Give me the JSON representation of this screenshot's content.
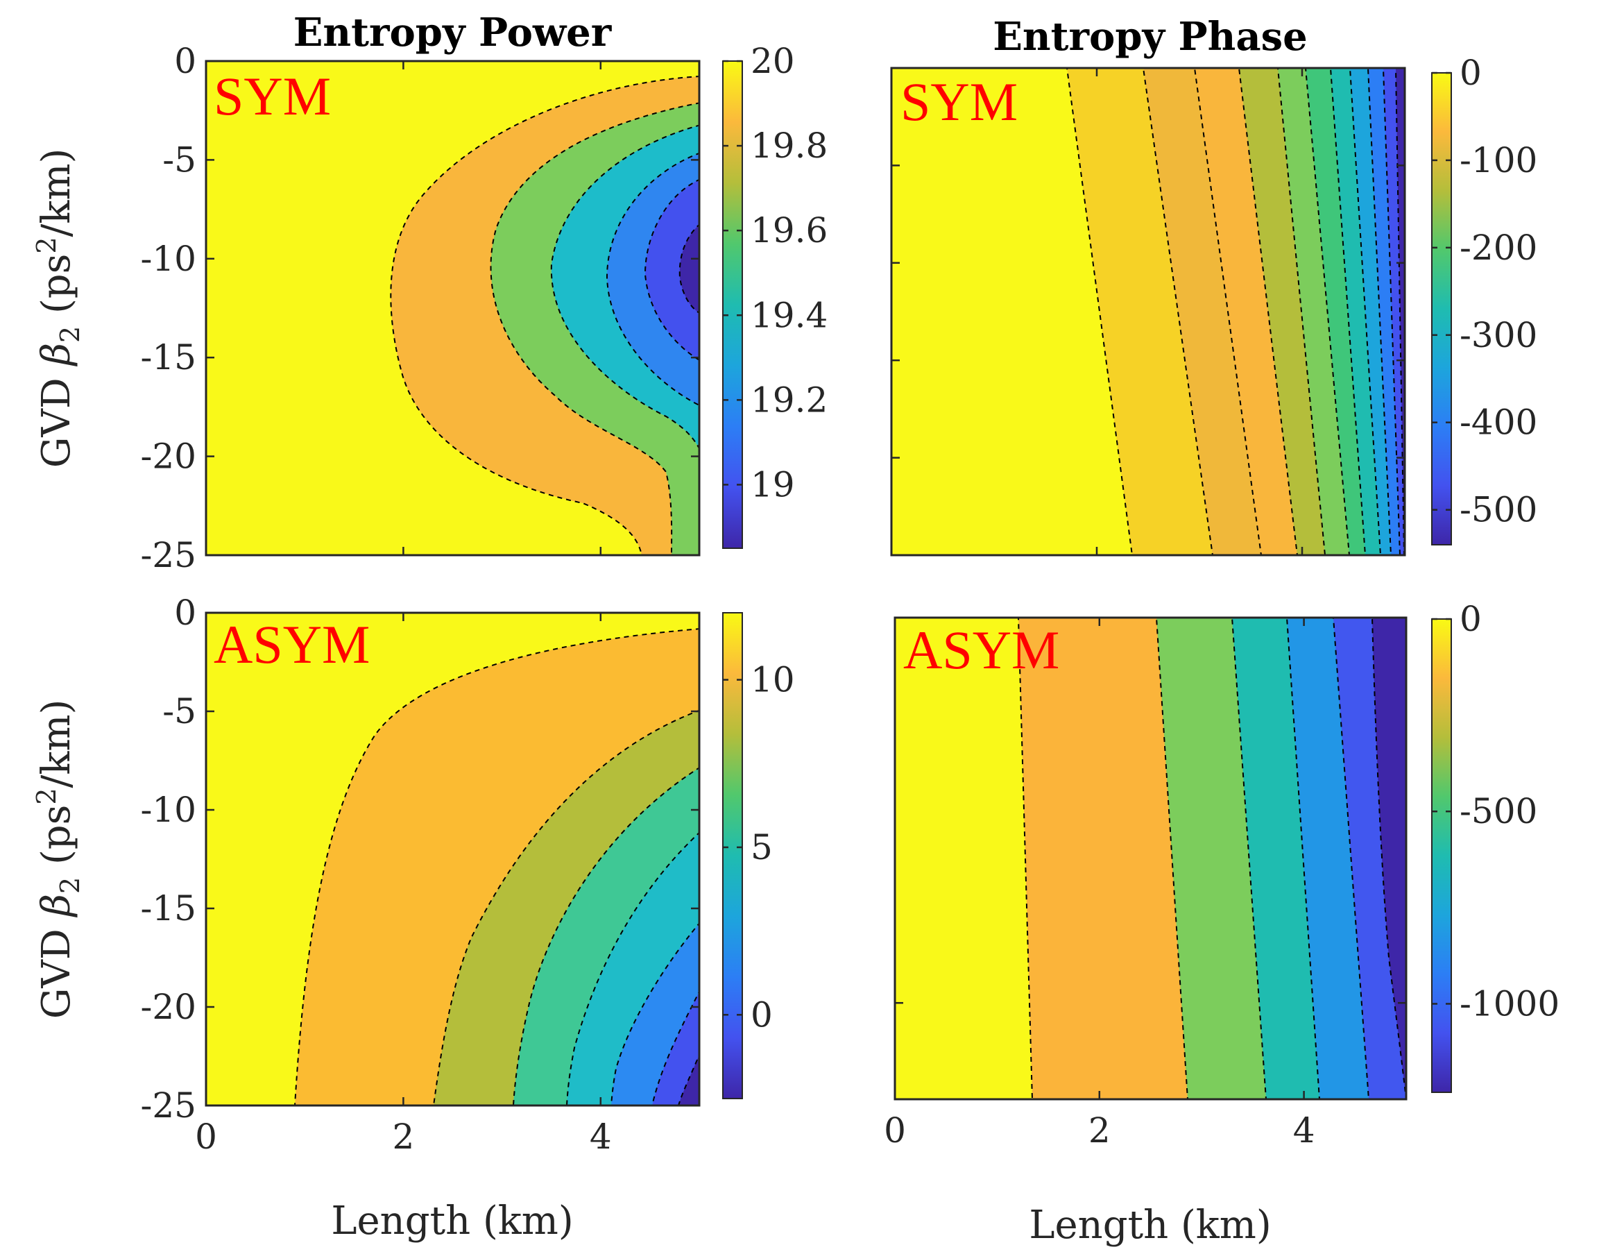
{
  "chart_data": [
    {
      "type": "contour",
      "panel": "top-left",
      "title": "Entropy Power",
      "annotation": "SYM",
      "xlabel": "",
      "ylabel": "GVD β2 (ps²/km)",
      "xlim": [
        0,
        5
      ],
      "ylim": [
        -25,
        0
      ],
      "xticks": [
        0,
        2,
        4
      ],
      "xtick_labels": [
        "",
        "",
        ""
      ],
      "yticks": [
        0,
        -5,
        -10,
        -15,
        -20,
        -25
      ],
      "ytick_labels": [
        "0",
        "-5",
        "-10",
        "-15",
        "-20",
        "-25"
      ],
      "colorbar": {
        "range": [
          18.85,
          20.0
        ],
        "ticks": [
          20,
          19.8,
          19.6,
          19.4,
          19.2,
          19
        ],
        "tick_labels": [
          "20",
          "19.8",
          "19.6",
          "19.4",
          "19.2",
          "19"
        ]
      },
      "contour_levels": [
        19.95,
        19.8,
        19.6,
        19.4,
        19.2,
        19.05
      ]
    },
    {
      "type": "contour",
      "panel": "top-right",
      "title": "Entropy Phase",
      "annotation": "SYM",
      "xlabel": "",
      "ylabel": "",
      "xlim": [
        0,
        5
      ],
      "ylim": [
        -25,
        0
      ],
      "xticks": [
        0,
        2,
        4
      ],
      "xtick_labels": [
        "",
        "",
        ""
      ],
      "yticks": [
        -5,
        -10,
        -15,
        -20
      ],
      "ytick_labels": [
        "",
        "",
        "",
        ""
      ],
      "colorbar": {
        "range": [
          -540,
          0
        ],
        "ticks": [
          0,
          -100,
          -200,
          -300,
          -400,
          -500
        ],
        "tick_labels": [
          "0",
          "-100",
          "-200",
          "-300",
          "-400",
          "-500"
        ]
      },
      "contour_levels": [
        -20,
        -60,
        -110,
        -160,
        -210,
        -260,
        -310,
        -360,
        -410,
        -460,
        -510
      ]
    },
    {
      "type": "contour",
      "panel": "bottom-left",
      "title": "",
      "annotation": "ASYM",
      "xlabel": "Length (km)",
      "ylabel": "GVD β2 (ps²/km)",
      "xlim": [
        0,
        5
      ],
      "ylim": [
        -25,
        0
      ],
      "xticks": [
        0,
        2,
        4
      ],
      "xtick_labels": [
        "0",
        "2",
        "4"
      ],
      "yticks": [
        0,
        -5,
        -10,
        -15,
        -20,
        -25
      ],
      "ytick_labels": [
        "0",
        "-5",
        "-10",
        "-15",
        "-20",
        "-25"
      ],
      "colorbar": {
        "range": [
          -2.5,
          12
        ],
        "ticks": [
          10,
          5,
          0
        ],
        "tick_labels": [
          "10",
          "5",
          "0"
        ]
      },
      "contour_levels": [
        11,
        9.5,
        7.5,
        5.5,
        3.5,
        1.5,
        0
      ]
    },
    {
      "type": "contour",
      "panel": "bottom-right",
      "title": "",
      "annotation": "ASYM",
      "xlabel": "Length (km)",
      "ylabel": "",
      "xlim": [
        0,
        5
      ],
      "ylim": [
        -25,
        0
      ],
      "xticks": [
        0,
        2,
        4
      ],
      "xtick_labels": [
        "0",
        "2",
        "4"
      ],
      "yticks": [
        -20
      ],
      "ytick_labels": [
        ""
      ],
      "colorbar": {
        "range": [
          -1230,
          0
        ],
        "ticks": [
          0,
          -500,
          -1000
        ],
        "tick_labels": [
          "0",
          "-500",
          "-1000"
        ]
      },
      "contour_levels": [
        -150,
        -350,
        -550,
        -750,
        -950,
        -1100
      ]
    }
  ]
}
